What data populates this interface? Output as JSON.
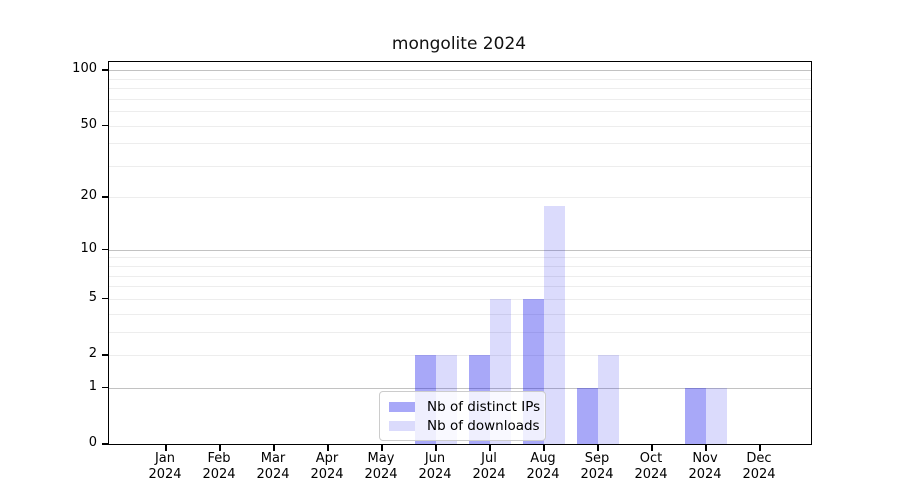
{
  "page": {
    "background_color": "#ffffff",
    "text_color": "#000000"
  },
  "chart_data": {
    "type": "bar",
    "title": "mongolite 2024",
    "categories": [
      "Jan",
      "Feb",
      "Mar",
      "Apr",
      "May",
      "Jun",
      "Jul",
      "Aug",
      "Sep",
      "Oct",
      "Nov",
      "Dec"
    ],
    "category_year": "2024",
    "series": [
      {
        "name": "Nb of distinct IPs",
        "color": "rgba(0,0,235,0.34)",
        "values": [
          0,
          0,
          0,
          0,
          0,
          2,
          2,
          5,
          1,
          0,
          1,
          0
        ]
      },
      {
        "name": "Nb of downloads",
        "color": "rgba(0,0,235,0.14)",
        "values": [
          0,
          0,
          0,
          0,
          0,
          2,
          5,
          18,
          2,
          0,
          1,
          0
        ]
      }
    ],
    "xlabel": "",
    "ylabel": "",
    "y_scale": "log1p",
    "ylim": [
      0,
      113
    ],
    "y_tick_labels": [
      0,
      1,
      2,
      5,
      10,
      20,
      50,
      100
    ],
    "y_major_gridlines": [
      1,
      10,
      100
    ],
    "y_minor_gridlines": [
      2,
      3,
      4,
      5,
      6,
      7,
      8,
      9,
      20,
      30,
      40,
      50,
      60,
      70,
      80,
      90
    ],
    "grid": true,
    "legend_position": "lower-center-inside",
    "colors": {
      "major_grid": "#c2c2c2",
      "minor_grid": "#ededed",
      "spine": "#000000"
    }
  }
}
